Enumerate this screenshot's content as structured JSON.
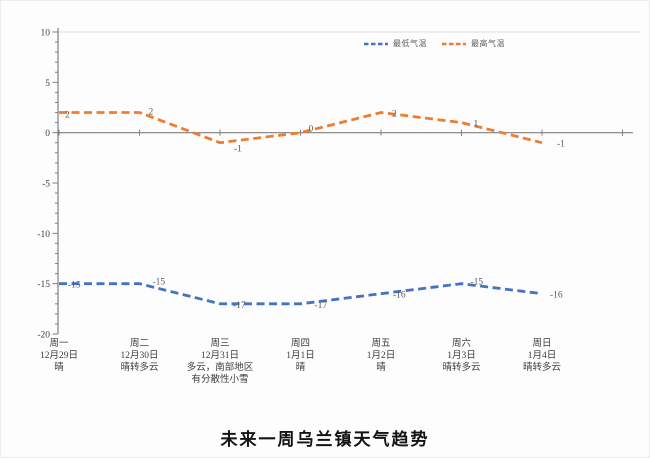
{
  "page": {
    "background": "#fdfdfd"
  },
  "chart_data": {
    "type": "line",
    "title": "未来一周乌兰镇天气趋势",
    "legend_position": "top",
    "grid": false,
    "line_style": "dashed",
    "axis_color": "#7f7f7f",
    "label_color": "#404040",
    "data_label_color": "#595959",
    "ylim": [
      -20,
      10
    ],
    "ytick_step": 5,
    "yminor_step": 1,
    "yticks": [
      10,
      5,
      0,
      -5,
      -10,
      -15,
      -20
    ],
    "x_axis_crosses_at": 0,
    "categories": [
      {
        "day": "周一",
        "date": "12月29日",
        "weather": [
          "晴"
        ]
      },
      {
        "day": "周二",
        "date": "12月30日",
        "weather": [
          "晴转多云"
        ]
      },
      {
        "day": "周三",
        "date": "12月31日",
        "weather": [
          "多云，南部地区",
          "有分散性小雪"
        ]
      },
      {
        "day": "周四",
        "date": "1月1日",
        "weather": [
          "晴"
        ]
      },
      {
        "day": "周五",
        "date": "1月2日",
        "weather": [
          "晴"
        ]
      },
      {
        "day": "周六",
        "date": "1月3日",
        "weather": [
          "晴转多云"
        ]
      },
      {
        "day": "周日",
        "date": "1月4日",
        "weather": [
          "晴转多云"
        ]
      }
    ],
    "series": [
      {
        "name": "最低气温",
        "color": "#4472C4",
        "values": [
          -15,
          -15,
          -17,
          -17,
          -16,
          -15,
          -16
        ],
        "labels": [
          "-15",
          "-15",
          "-17",
          "-17",
          "-16",
          "-15",
          "-16"
        ],
        "label_offsets": [
          [
            9,
            1
          ],
          [
            13,
            -2
          ],
          [
            13,
            1
          ],
          [
            14,
            1
          ],
          [
            12,
            1
          ],
          [
            9,
            -2
          ],
          [
            8,
            1
          ]
        ]
      },
      {
        "name": "最高气温",
        "color": "#ED7D31",
        "values": [
          2,
          2,
          -1,
          0,
          2,
          1,
          -1
        ],
        "labels": [
          "2",
          "2",
          "-1",
          "0",
          "2",
          "1",
          "-1"
        ],
        "label_offsets": [
          [
            6,
            2
          ],
          [
            9,
            -1
          ],
          [
            14,
            6
          ],
          [
            8,
            -4
          ],
          [
            11,
            1
          ],
          [
            12,
            1
          ],
          [
            15,
            1
          ]
        ]
      }
    ]
  }
}
